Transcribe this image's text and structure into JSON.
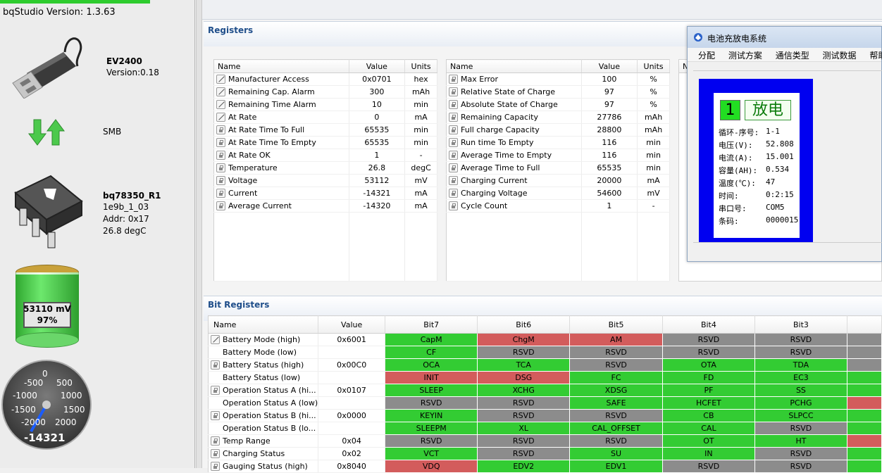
{
  "sidebar": {
    "version_label": "bqStudio Version:  1.3.63",
    "ev_name": "EV2400",
    "ev_version": "Version:0.18",
    "bus": "SMB",
    "device_name": "bq78350_R1",
    "device_fw": "1e9b_1_03",
    "device_addr": "Addr: 0x17",
    "device_temp": "26.8 degC",
    "battery_voltage": "53110 mV",
    "battery_percent": "97%",
    "battery_fill_fraction": 0.97,
    "gauge_value": "-14321",
    "gauge_ticks": [
      "0",
      "500",
      "1000",
      "1500",
      "2000",
      "-500",
      "-1000",
      "-1500",
      "-2000"
    ]
  },
  "registers": {
    "title": "Registers",
    "columns": [
      "Name",
      "Value",
      "Units"
    ],
    "col1": [
      {
        "icon": "edit",
        "name": "Manufacturer Access",
        "value": "0x0701",
        "unit": "hex"
      },
      {
        "icon": "edit",
        "name": "Remaining Cap. Alarm",
        "value": "300",
        "unit": "mAh"
      },
      {
        "icon": "edit",
        "name": "Remaining Time Alarm",
        "value": "10",
        "unit": "min"
      },
      {
        "icon": "edit",
        "name": "At Rate",
        "value": "0",
        "unit": "mA"
      },
      {
        "icon": "lock",
        "name": "At Rate Time To Full",
        "value": "65535",
        "unit": "min"
      },
      {
        "icon": "lock",
        "name": "At Rate Time To Empty",
        "value": "65535",
        "unit": "min"
      },
      {
        "icon": "lock",
        "name": "At Rate OK",
        "value": "1",
        "unit": "-"
      },
      {
        "icon": "lock",
        "name": "Temperature",
        "value": "26.8",
        "unit": "degC"
      },
      {
        "icon": "lock",
        "name": "Voltage",
        "value": "53112",
        "unit": "mV"
      },
      {
        "icon": "lock",
        "name": "Current",
        "value": "-14321",
        "unit": "mA"
      },
      {
        "icon": "lock",
        "name": "Average Current",
        "value": "-14320",
        "unit": "mA"
      }
    ],
    "col2": [
      {
        "icon": "lock",
        "name": "Max Error",
        "value": "100",
        "unit": "%"
      },
      {
        "icon": "lock",
        "name": "Relative State of Charge",
        "value": "97",
        "unit": "%"
      },
      {
        "icon": "lock",
        "name": "Absolute State of Charge",
        "value": "97",
        "unit": "%"
      },
      {
        "icon": "lock",
        "name": "Remaining Capacity",
        "value": "27786",
        "unit": "mAh"
      },
      {
        "icon": "lock",
        "name": "Full charge Capacity",
        "value": "28800",
        "unit": "mAh"
      },
      {
        "icon": "lock",
        "name": "Run time To Empty",
        "value": "116",
        "unit": "min"
      },
      {
        "icon": "lock",
        "name": "Average Time to Empty",
        "value": "116",
        "unit": "min"
      },
      {
        "icon": "lock",
        "name": "Average Time to Full",
        "value": "65535",
        "unit": "min"
      },
      {
        "icon": "lock",
        "name": "Charging Current",
        "value": "20000",
        "unit": "mA"
      },
      {
        "icon": "lock",
        "name": "Charging Voltage",
        "value": "54600",
        "unit": "mV"
      },
      {
        "icon": "lock",
        "name": "Cycle Count",
        "value": "1",
        "unit": "-"
      }
    ],
    "col3_header": "N"
  },
  "bit_registers": {
    "title": "Bit Registers",
    "columns": [
      "Name",
      "Value",
      "Bit7",
      "Bit6",
      "Bit5",
      "Bit4",
      "Bit3"
    ],
    "rows": [
      {
        "icon": "edit",
        "name": "Battery Mode (high)",
        "value": "0x6001",
        "bits": [
          [
            "CapM",
            "g"
          ],
          [
            "ChgM",
            "r"
          ],
          [
            "AM",
            "r"
          ],
          [
            "RSVD",
            "y"
          ],
          [
            "RSVD",
            "y"
          ]
        ],
        "extra": "y"
      },
      {
        "icon": "blank",
        "name": "Battery Mode (low)",
        "value": "",
        "bits": [
          [
            "CF",
            "g"
          ],
          [
            "RSVD",
            "y"
          ],
          [
            "RSVD",
            "y"
          ],
          [
            "RSVD",
            "y"
          ],
          [
            "RSVD",
            "y"
          ]
        ],
        "extra": "y"
      },
      {
        "icon": "lock",
        "name": "Battery Status (high)",
        "value": "0x00C0",
        "bits": [
          [
            "OCA",
            "g"
          ],
          [
            "TCA",
            "g"
          ],
          [
            "RSVD",
            "y"
          ],
          [
            "OTA",
            "g"
          ],
          [
            "TDA",
            "g"
          ]
        ],
        "extra": "y"
      },
      {
        "icon": "blank",
        "name": "Battery Status (low)",
        "value": "",
        "bits": [
          [
            "INIT",
            "r"
          ],
          [
            "DSG",
            "r"
          ],
          [
            "FC",
            "g"
          ],
          [
            "FD",
            "g"
          ],
          [
            "EC3",
            "g"
          ]
        ],
        "extra": "g"
      },
      {
        "icon": "lock",
        "name": "Operation Status A (hi...",
        "value": "0x0107",
        "bits": [
          [
            "SLEEP",
            "g"
          ],
          [
            "XCHG",
            "g"
          ],
          [
            "XDSG",
            "g"
          ],
          [
            "PF",
            "g"
          ],
          [
            "SS",
            "g"
          ]
        ],
        "extra": "g"
      },
      {
        "icon": "blank",
        "name": "Operation Status A (low)",
        "value": "",
        "bits": [
          [
            "RSVD",
            "y"
          ],
          [
            "RSVD",
            "y"
          ],
          [
            "SAFE",
            "g"
          ],
          [
            "HCFET",
            "g"
          ],
          [
            "PCHG",
            "g"
          ]
        ],
        "extra": "r"
      },
      {
        "icon": "lock",
        "name": "Operation Status B (hi...",
        "value": "0x0000",
        "bits": [
          [
            "KEYIN",
            "g"
          ],
          [
            "RSVD",
            "y"
          ],
          [
            "RSVD",
            "y"
          ],
          [
            "CB",
            "g"
          ],
          [
            "SLPCC",
            "g"
          ]
        ],
        "extra": "g"
      },
      {
        "icon": "blank",
        "name": "Operation Status B (lo...",
        "value": "",
        "bits": [
          [
            "SLEEPM",
            "g"
          ],
          [
            "XL",
            "g"
          ],
          [
            "CAL_OFFSET",
            "g"
          ],
          [
            "CAL",
            "g"
          ],
          [
            "RSVD",
            "y"
          ]
        ],
        "extra": "g"
      },
      {
        "icon": "lock",
        "name": "Temp Range",
        "value": "0x04",
        "bits": [
          [
            "RSVD",
            "y"
          ],
          [
            "RSVD",
            "y"
          ],
          [
            "RSVD",
            "y"
          ],
          [
            "OT",
            "g"
          ],
          [
            "HT",
            "g"
          ]
        ],
        "extra": "r"
      },
      {
        "icon": "lock",
        "name": "Charging Status",
        "value": "0x02",
        "bits": [
          [
            "VCT",
            "g"
          ],
          [
            "RSVD",
            "y"
          ],
          [
            "SU",
            "g"
          ],
          [
            "IN",
            "g"
          ],
          [
            "RSVD",
            "y"
          ]
        ],
        "extra": "g"
      },
      {
        "icon": "lock",
        "name": "Gauging Status (high)",
        "value": "0x8040",
        "bits": [
          [
            "VDQ",
            "r"
          ],
          [
            "EDV2",
            "g"
          ],
          [
            "EDV1",
            "g"
          ],
          [
            "RSVD",
            "y"
          ],
          [
            "RSVD",
            "y"
          ]
        ],
        "extra": "g"
      }
    ]
  },
  "popup": {
    "title": "电池充放电系统",
    "menu": [
      "分配",
      "测试方案",
      "通信类型",
      "测试数据",
      "帮助"
    ],
    "channel": "1",
    "mode": "放电",
    "lines": [
      {
        "label": "循环-序号:",
        "value": "1-1"
      },
      {
        "label": "电压(V):",
        "value": "52.808"
      },
      {
        "label": "电流(A):",
        "value": "15.001"
      },
      {
        "label": "容量(AH):",
        "value": "0.534"
      },
      {
        "label": "温度(℃):",
        "value": "47"
      },
      {
        "label": "时间:",
        "value": "0:2:15"
      },
      {
        "label": "串口号:",
        "value": "COM5"
      },
      {
        "label": "条码:",
        "value": "0000015"
      }
    ]
  },
  "colors": {
    "green": "#33cc33",
    "red": "#d35c5c",
    "gray": "#8c8c8c",
    "title_blue": "#1f4e8a",
    "popup_blue": "#0000f0"
  }
}
